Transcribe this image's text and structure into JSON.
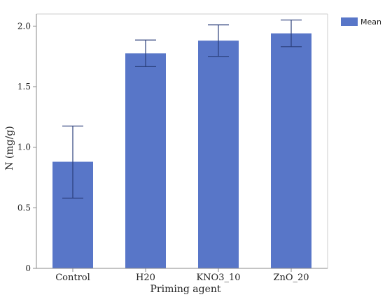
{
  "chart_data": {
    "type": "bar",
    "title": "",
    "xlabel": "Priming agent",
    "ylabel": "N (mg/g)",
    "categories": [
      "Control",
      "H20",
      "KNO3_10",
      "ZnO_20"
    ],
    "series": [
      {
        "name": "Mean",
        "values": [
          0.88,
          1.775,
          1.88,
          1.94
        ],
        "error_low": [
          0.58,
          1.665,
          1.75,
          1.83
        ],
        "error_high": [
          1.175,
          1.885,
          2.01,
          2.05
        ]
      }
    ],
    "ylim": [
      0,
      2.1
    ],
    "yticks": [
      0,
      0.5,
      1.0,
      1.5,
      2.0
    ],
    "ytick_labels": [
      "0",
      "0.5",
      "1.0",
      "1.5",
      "2.0"
    ],
    "grid": false,
    "legend_position": "top-right",
    "colors": {
      "bar": "#5876c8",
      "error": "#2b3f7a",
      "axis": "#888888",
      "frame": "#cccccc"
    }
  }
}
